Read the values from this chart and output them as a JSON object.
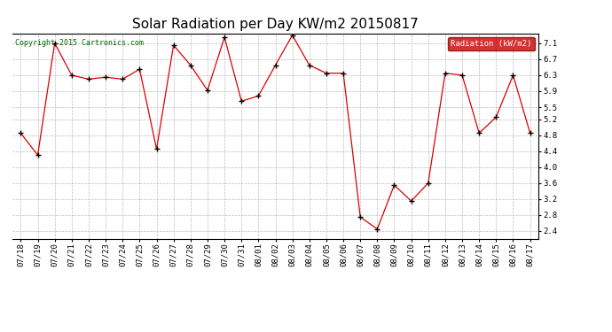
{
  "title": "Solar Radiation per Day KW/m2 20150817",
  "copyright_text": "Copyright 2015 Cartronics.com",
  "legend_label": "Radiation (kW/m2)",
  "background_color": "#ffffff",
  "plot_bg_color": "#ffffff",
  "grid_color": "#bbbbbb",
  "line_color": "#dd0000",
  "marker_color": "#000000",
  "dates": [
    "07/18",
    "07/19",
    "07/20",
    "07/21",
    "07/22",
    "07/23",
    "07/24",
    "07/25",
    "07/26",
    "07/27",
    "07/28",
    "07/29",
    "07/30",
    "07/31",
    "08/01",
    "08/02",
    "08/03",
    "08/04",
    "08/05",
    "08/06",
    "08/07",
    "08/08",
    "08/09",
    "08/10",
    "08/11",
    "08/12",
    "08/13",
    "08/14",
    "08/15",
    "08/16",
    "08/17"
  ],
  "values": [
    4.85,
    4.3,
    7.1,
    6.3,
    6.2,
    6.25,
    6.2,
    6.45,
    4.45,
    7.05,
    6.55,
    5.92,
    7.25,
    5.65,
    5.78,
    6.55,
    7.3,
    6.55,
    6.35,
    6.35,
    2.75,
    2.45,
    3.55,
    3.15,
    3.6,
    6.35,
    6.3,
    4.85,
    5.25,
    6.3,
    4.85
  ],
  "ylim": [
    2.2,
    7.35
  ],
  "yticks": [
    2.4,
    2.8,
    3.2,
    3.6,
    4.0,
    4.4,
    4.8,
    5.2,
    5.5,
    5.9,
    6.3,
    6.7,
    7.1
  ],
  "title_fontsize": 11,
  "tick_fontsize": 6.5,
  "copyright_fontsize": 6,
  "copyright_color": "#006600",
  "legend_fontsize": 6.5
}
